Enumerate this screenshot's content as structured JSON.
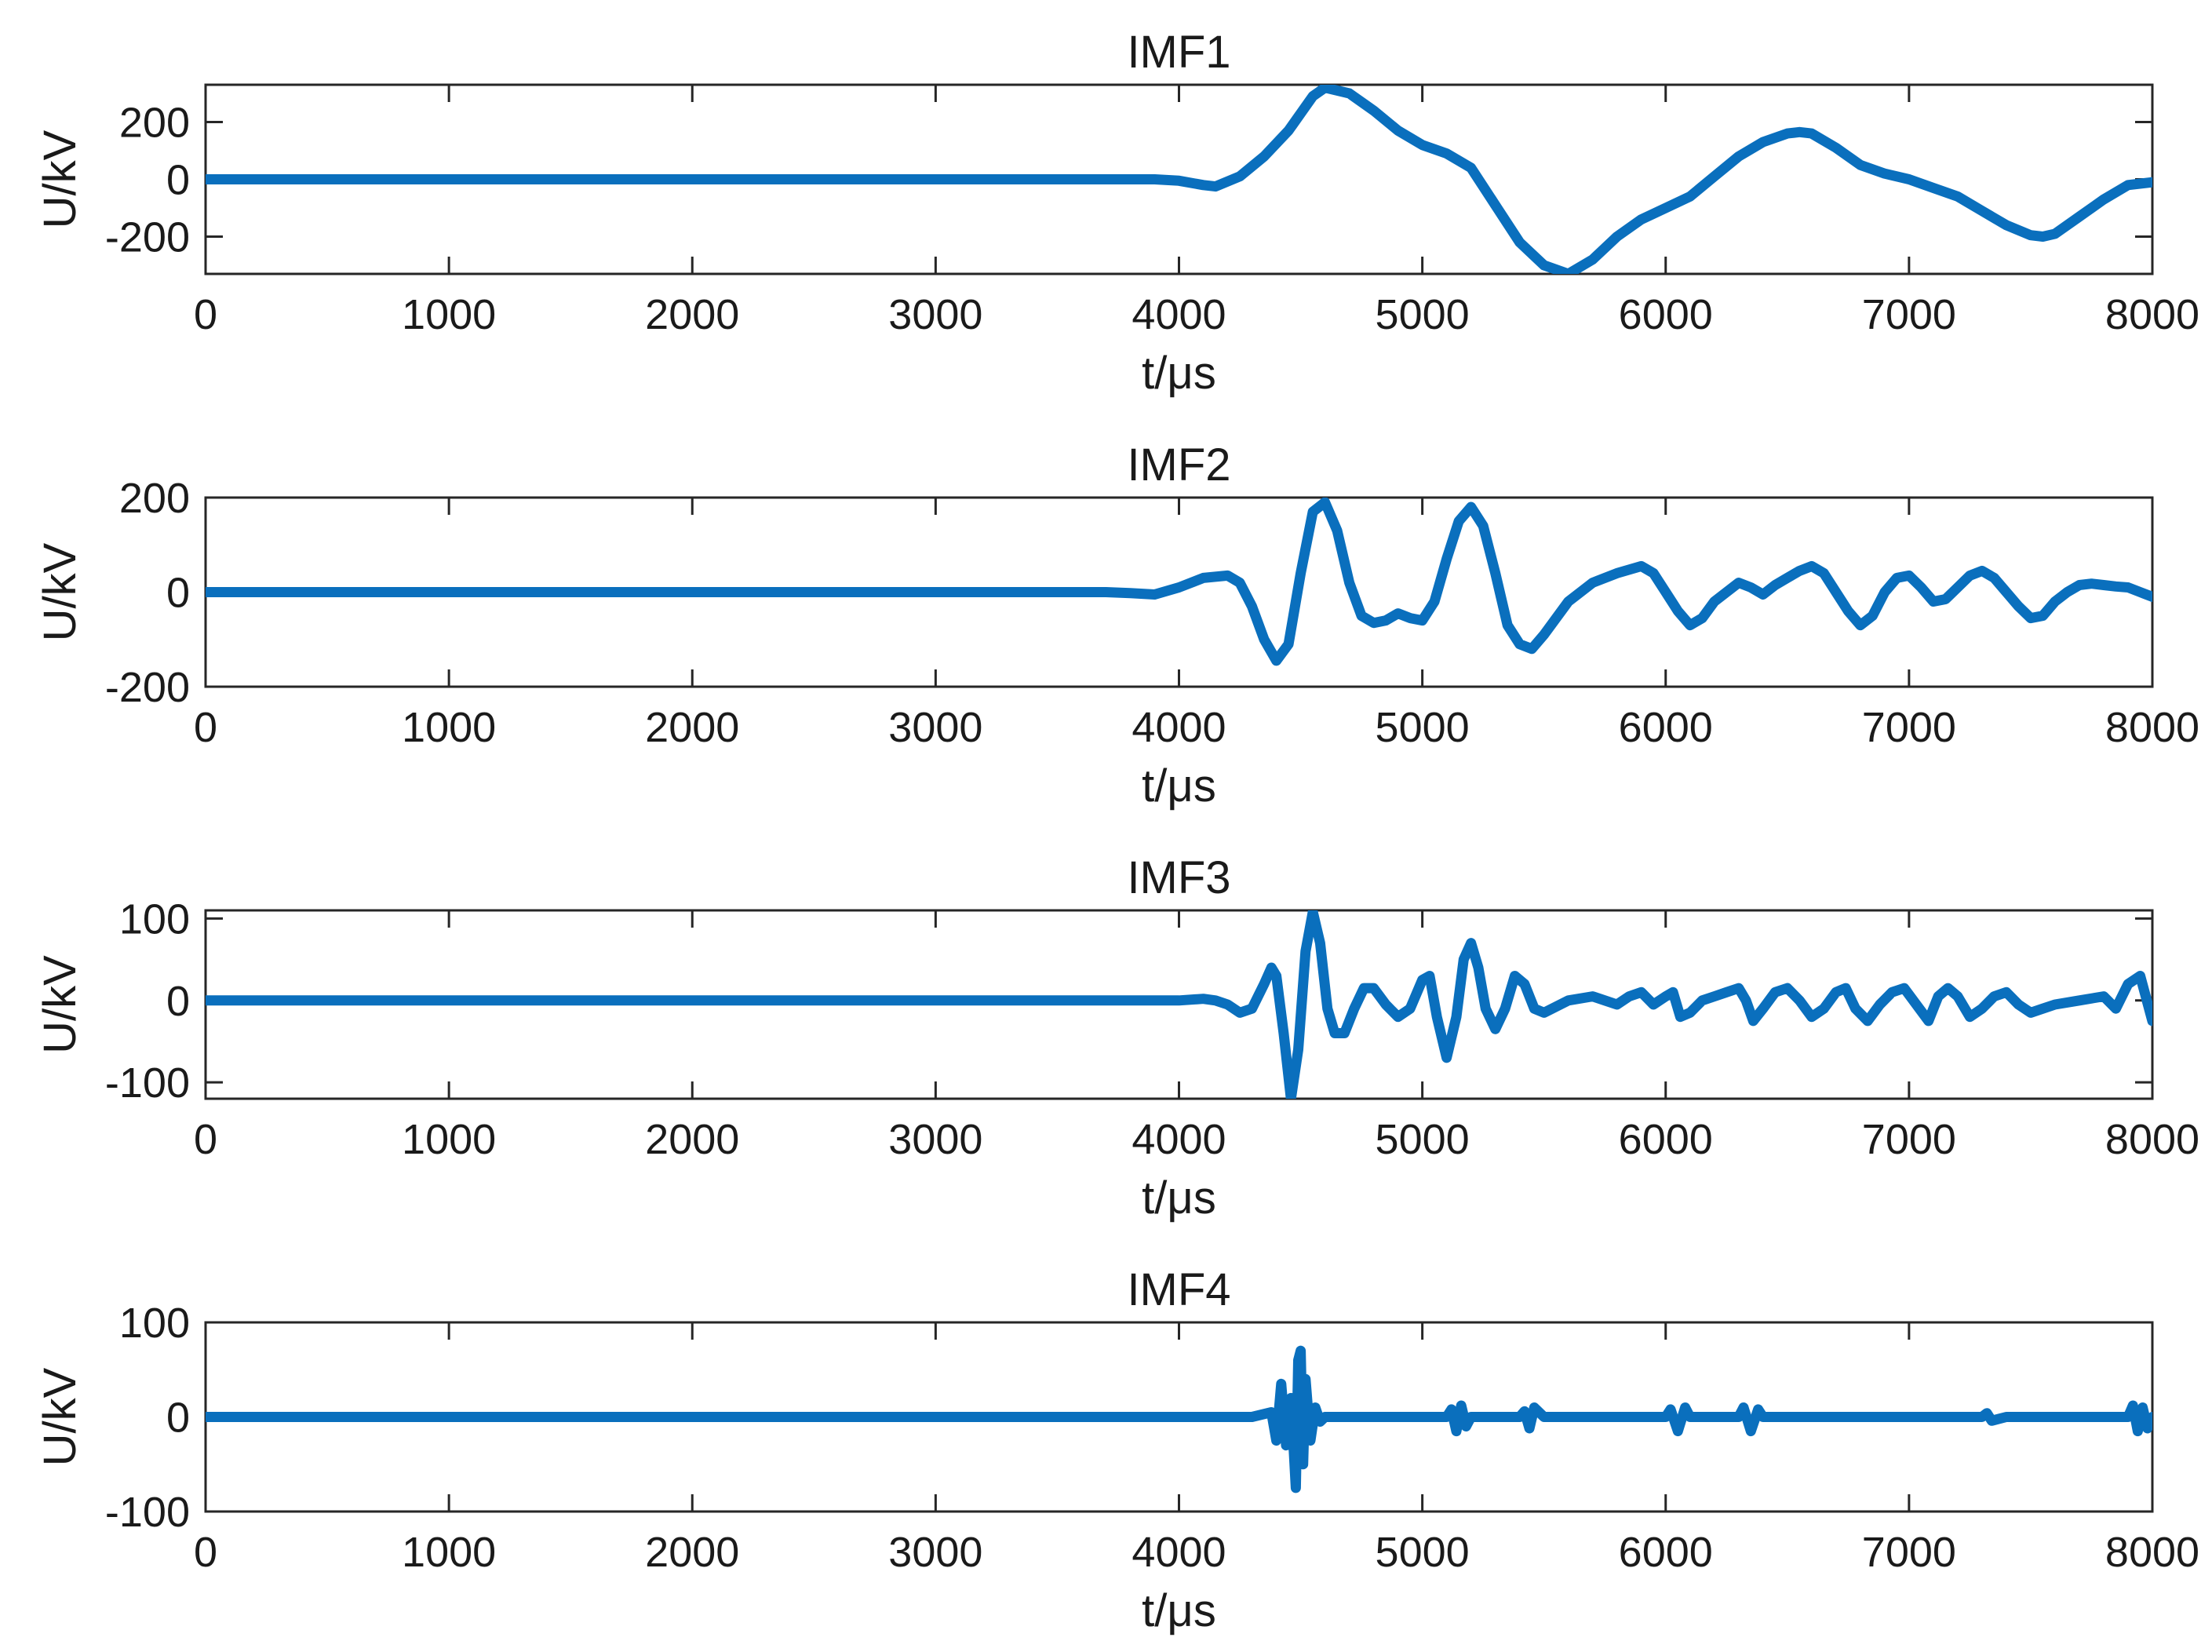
{
  "colors": {
    "line": "#0a6fbd",
    "axis": "#262626",
    "grid_tick": "#262626",
    "background": "#ffffff"
  },
  "chart_data": [
    {
      "type": "line",
      "title": "IMF1",
      "xlabel": "t/μs",
      "ylabel": "U/kV",
      "xlim": [
        0,
        8000
      ],
      "ylim": [
        -330,
        330
      ],
      "xticks": [
        0,
        1000,
        2000,
        3000,
        4000,
        5000,
        6000,
        7000,
        8000
      ],
      "yticks": [
        -200,
        0,
        200
      ],
      "series": [
        {
          "name": "IMF1",
          "x": [
            0,
            1000,
            2000,
            3000,
            3600,
            3800,
            3900,
            4000,
            4100,
            4150,
            4250,
            4350,
            4450,
            4500,
            4550,
            4600,
            4700,
            4800,
            4900,
            5000,
            5100,
            5200,
            5300,
            5400,
            5500,
            5600,
            5700,
            5800,
            5900,
            6000,
            6100,
            6200,
            6300,
            6400,
            6500,
            6550,
            6600,
            6700,
            6800,
            6900,
            7000,
            7100,
            7200,
            7300,
            7400,
            7500,
            7550,
            7600,
            7700,
            7800,
            7900,
            8000
          ],
          "values": [
            0,
            0,
            0,
            0,
            0,
            0,
            0,
            -5,
            -20,
            -25,
            10,
            80,
            170,
            230,
            290,
            320,
            300,
            240,
            170,
            120,
            90,
            40,
            -90,
            -220,
            -300,
            -330,
            -280,
            -200,
            -140,
            -100,
            -60,
            10,
            80,
            130,
            160,
            165,
            160,
            110,
            50,
            20,
            0,
            -30,
            -60,
            -110,
            -160,
            -195,
            -200,
            -190,
            -130,
            -70,
            -20,
            -10
          ]
        }
      ]
    },
    {
      "type": "line",
      "title": "IMF2",
      "xlabel": "t/μs",
      "ylabel": "U/kV",
      "xlim": [
        0,
        8000
      ],
      "ylim": [
        -200,
        200
      ],
      "xticks": [
        0,
        1000,
        2000,
        3000,
        4000,
        5000,
        6000,
        7000,
        8000
      ],
      "yticks": [
        -200,
        0,
        200
      ],
      "series": [
        {
          "name": "IMF2",
          "x": [
            0,
            1000,
            2000,
            3000,
            3700,
            3800,
            3900,
            4000,
            4100,
            4200,
            4250,
            4300,
            4350,
            4400,
            4450,
            4500,
            4550,
            4600,
            4650,
            4700,
            4750,
            4800,
            4850,
            4900,
            4950,
            5000,
            5050,
            5100,
            5150,
            5200,
            5250,
            5300,
            5350,
            5400,
            5450,
            5500,
            5600,
            5700,
            5800,
            5900,
            5950,
            6000,
            6050,
            6100,
            6150,
            6200,
            6250,
            6300,
            6350,
            6400,
            6450,
            6500,
            6550,
            6600,
            6650,
            6700,
            6750,
            6800,
            6850,
            6900,
            6950,
            7000,
            7050,
            7100,
            7150,
            7200,
            7250,
            7300,
            7350,
            7400,
            7450,
            7500,
            7550,
            7600,
            7650,
            7700,
            7750,
            7800,
            7850,
            7900,
            7950,
            8000
          ],
          "values": [
            0,
            0,
            0,
            0,
            0,
            -2,
            -5,
            10,
            30,
            35,
            20,
            -30,
            -100,
            -145,
            -110,
            40,
            170,
            190,
            130,
            20,
            -50,
            -65,
            -60,
            -45,
            -55,
            -60,
            -20,
            70,
            150,
            180,
            140,
            40,
            -70,
            -110,
            -120,
            -90,
            -20,
            20,
            40,
            55,
            40,
            0,
            -40,
            -70,
            -55,
            -20,
            0,
            20,
            10,
            -5,
            15,
            30,
            45,
            55,
            40,
            0,
            -40,
            -70,
            -50,
            0,
            30,
            35,
            10,
            -20,
            -15,
            10,
            35,
            45,
            30,
            0,
            -30,
            -55,
            -50,
            -20,
            0,
            15,
            18,
            15,
            12,
            10,
            0,
            -10
          ]
        }
      ]
    },
    {
      "type": "line",
      "title": "IMF3",
      "xlabel": "t/μs",
      "ylabel": "U/kV",
      "xlim": [
        0,
        8000
      ],
      "ylim": [
        -120,
        110
      ],
      "xticks": [
        0,
        1000,
        2000,
        3000,
        4000,
        5000,
        6000,
        7000,
        8000
      ],
      "yticks": [
        -100,
        0,
        100
      ],
      "series": [
        {
          "name": "IMF3",
          "x": [
            0,
            1000,
            2000,
            3000,
            3800,
            4000,
            4100,
            4150,
            4200,
            4250,
            4300,
            4350,
            4380,
            4400,
            4430,
            4460,
            4490,
            4520,
            4550,
            4580,
            4610,
            4640,
            4680,
            4720,
            4760,
            4800,
            4850,
            4900,
            4950,
            5000,
            5030,
            5060,
            5100,
            5140,
            5170,
            5200,
            5230,
            5260,
            5300,
            5340,
            5380,
            5420,
            5460,
            5500,
            5600,
            5700,
            5750,
            5800,
            5850,
            5900,
            5950,
            6000,
            6030,
            6060,
            6100,
            6150,
            6200,
            6250,
            6300,
            6330,
            6360,
            6400,
            6450,
            6500,
            6550,
            6600,
            6650,
            6700,
            6740,
            6780,
            6830,
            6880,
            6930,
            6980,
            7030,
            7080,
            7120,
            7160,
            7200,
            7250,
            7300,
            7350,
            7400,
            7450,
            7500,
            7550,
            7600,
            7700,
            7800,
            7850,
            7900,
            7950,
            8000
          ],
          "values": [
            0,
            0,
            0,
            0,
            0,
            0,
            2,
            0,
            -5,
            -15,
            -10,
            20,
            40,
            30,
            -40,
            -120,
            -60,
            60,
            108,
            70,
            -10,
            -40,
            -40,
            -10,
            15,
            15,
            -5,
            -20,
            -10,
            25,
            30,
            -20,
            -70,
            -20,
            50,
            70,
            40,
            -10,
            -35,
            -10,
            30,
            20,
            -10,
            -15,
            0,
            5,
            0,
            -5,
            5,
            10,
            -5,
            5,
            10,
            -20,
            -15,
            0,
            5,
            10,
            15,
            0,
            -25,
            -10,
            10,
            15,
            0,
            -20,
            -10,
            10,
            15,
            -10,
            -25,
            -5,
            10,
            15,
            -5,
            -25,
            5,
            15,
            5,
            -20,
            -10,
            5,
            10,
            -5,
            -15,
            -10,
            -5,
            0,
            5,
            -10,
            20,
            30,
            -25
          ]
        }
      ]
    },
    {
      "type": "line",
      "title": "IMF4",
      "xlabel": "t/μs",
      "ylabel": "U/kV",
      "xlim": [
        0,
        8000
      ],
      "ylim": [
        -100,
        100
      ],
      "xticks": [
        0,
        1000,
        2000,
        3000,
        4000,
        5000,
        6000,
        7000,
        8000
      ],
      "yticks": [
        -100,
        0,
        100
      ],
      "series": [
        {
          "name": "IMF4",
          "x": [
            0,
            1000,
            2000,
            3000,
            4000,
            4300,
            4380,
            4400,
            4420,
            4440,
            4460,
            4480,
            4490,
            4500,
            4510,
            4520,
            4540,
            4560,
            4580,
            4600,
            5100,
            5120,
            5140,
            5160,
            5180,
            5200,
            5400,
            5420,
            5440,
            5460,
            5500,
            6000,
            6020,
            6050,
            6080,
            6100,
            6300,
            6320,
            6350,
            6380,
            6400,
            6800,
            7000,
            7200,
            7300,
            7320,
            7340,
            7400,
            7800,
            7900,
            7920,
            7940,
            7960,
            7980,
            8000
          ],
          "values": [
            0,
            0,
            0,
            0,
            0,
            0,
            5,
            -25,
            35,
            -30,
            20,
            -75,
            60,
            70,
            -50,
            40,
            -25,
            10,
            -5,
            0,
            0,
            8,
            -15,
            12,
            -10,
            0,
            0,
            6,
            -12,
            10,
            0,
            0,
            8,
            -15,
            10,
            0,
            0,
            10,
            -15,
            8,
            0,
            0,
            0,
            0,
            0,
            4,
            -4,
            0,
            0,
            0,
            12,
            -15,
            10,
            -12,
            0
          ]
        }
      ]
    }
  ]
}
